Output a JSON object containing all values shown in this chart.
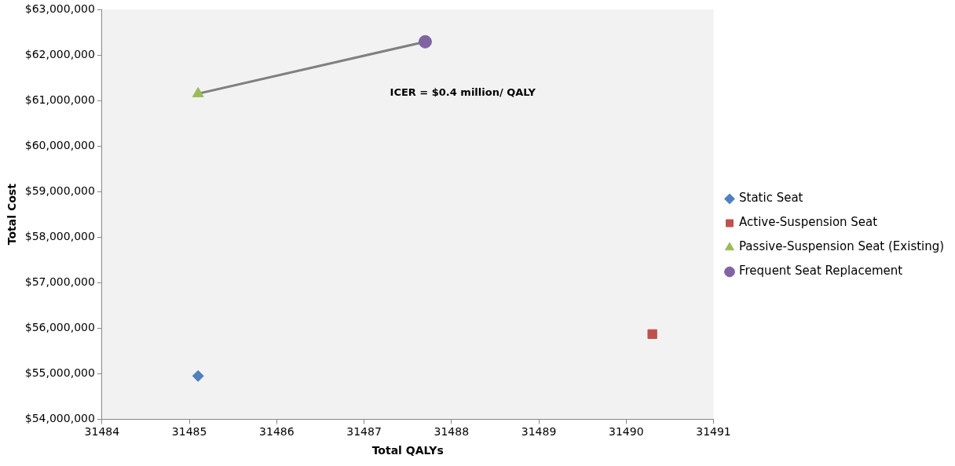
{
  "chart_data": {
    "type": "scatter",
    "xlabel": "Total QALYs",
    "ylabel": "Total Cost",
    "xlim": [
      31484,
      31491
    ],
    "xticks": [
      31484,
      31485,
      31486,
      31487,
      31488,
      31489,
      31490,
      31491
    ],
    "ylim": [
      54000000,
      63000000
    ],
    "yticks": [
      {
        "value": 54000000,
        "label": "$54,000,000"
      },
      {
        "value": 55000000,
        "label": "$55,000,000"
      },
      {
        "value": 56000000,
        "label": "$56,000,000"
      },
      {
        "value": 57000000,
        "label": "$57,000,000"
      },
      {
        "value": 58000000,
        "label": "$58,000,000"
      },
      {
        "value": 59000000,
        "label": "$59,000,000"
      },
      {
        "value": 60000000,
        "label": "$60,000,000"
      },
      {
        "value": 61000000,
        "label": "$61,000,000"
      },
      {
        "value": 62000000,
        "label": "$62,000,000"
      },
      {
        "value": 63000000,
        "label": "$63,000,000"
      }
    ],
    "grid": false,
    "legend": "right",
    "series": [
      {
        "name": "Static Seat",
        "color": "#4f81bd",
        "marker": "diamond",
        "x": [
          31485.1
        ],
        "values": [
          54950000
        ]
      },
      {
        "name": "Active-Suspension Seat",
        "color": "#c0504d",
        "marker": "square",
        "x": [
          31490.3
        ],
        "values": [
          55870000
        ]
      },
      {
        "name": "Passive-Suspension Seat (Existing)",
        "color": "#9bbb59",
        "marker": "triangle",
        "x": [
          31485.1
        ],
        "values": [
          61150000
        ]
      },
      {
        "name": "Frequent Seat Replacement",
        "color": "#8064a2",
        "marker": "circle",
        "x": [
          31487.7
        ],
        "values": [
          62290000
        ]
      },
      {
        "type": "line",
        "color": "#808080",
        "marker": "none",
        "x": [
          31485.1,
          31487.7
        ],
        "values": [
          61150000,
          62290000
        ]
      }
    ],
    "annotations": [
      "ICER = $0.4 million/ QALY"
    ]
  }
}
